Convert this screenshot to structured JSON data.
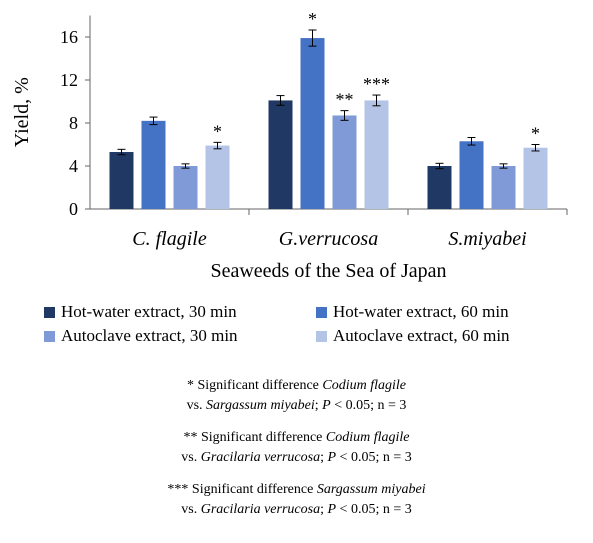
{
  "chart_data": {
    "type": "bar",
    "ylabel": "Yield, %",
    "xlabel": "Seaweeds of the Sea of Japan",
    "ylim": [
      0,
      18
    ],
    "yticks": [
      "0",
      "4",
      "8",
      "12",
      "16"
    ],
    "categories": [
      "C. flagile",
      "G.verrucosa",
      "S.miyabei"
    ],
    "series": [
      {
        "name": "Hot-water extract, 30 min",
        "color": "#1f3864",
        "values": [
          5.3,
          10.1,
          4.0
        ],
        "errors": [
          0.25,
          0.45,
          0.25
        ],
        "marks": [
          "",
          "",
          ""
        ]
      },
      {
        "name": "Hot-water extract, 60 min",
        "color": "#4472c4",
        "values": [
          8.2,
          15.9,
          6.3
        ],
        "errors": [
          0.35,
          0.75,
          0.35
        ],
        "marks": [
          "",
          "*",
          ""
        ]
      },
      {
        "name": "Autoclave extract, 30 min",
        "color": "#7f9ad6",
        "values": [
          4.0,
          8.7,
          4.0
        ],
        "errors": [
          0.2,
          0.45,
          0.2
        ],
        "marks": [
          "",
          "**",
          ""
        ]
      },
      {
        "name": "Autoclave extract, 60 min",
        "color": "#b4c4e6",
        "values": [
          5.9,
          10.1,
          5.7
        ],
        "errors": [
          0.3,
          0.5,
          0.3
        ],
        "marks": [
          "*",
          "***",
          "*"
        ]
      }
    ],
    "grid": false,
    "legend_position": "bottom"
  },
  "notes": [
    {
      "prefix": "* Significant difference ",
      "sp1": "Codium flagile",
      "vs": "vs. ",
      "sp2": "Sargassum miyabei",
      "stat": "; ",
      "p": "P",
      "rest": " < 0.05; n = 3"
    },
    {
      "prefix": "** Significant difference ",
      "sp1": "Codium flagile",
      "vs": "vs. ",
      "sp2": "Gracilaria verrucosa",
      "stat": "; ",
      "p": "P",
      "rest": " < 0.05; n = 3"
    },
    {
      "prefix": "*** Significant difference ",
      "sp1": "Sargassum miyabei",
      "vs": "vs. ",
      "sp2": "Gracilaria verrucosa",
      "stat": "; ",
      "p": "P",
      "rest": " < 0.05; n = 3"
    }
  ]
}
